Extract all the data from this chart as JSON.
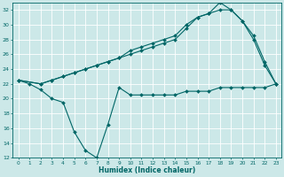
{
  "title": "",
  "xlabel": "Humidex (Indice chaleur)",
  "bg_color": "#cce8e8",
  "grid_color": "#ffffff",
  "line_color": "#006666",
  "ylim": [
    12,
    33
  ],
  "xlim": [
    -0.5,
    23.5
  ],
  "yticks": [
    12,
    14,
    16,
    18,
    20,
    22,
    24,
    26,
    28,
    30,
    32
  ],
  "xticks": [
    0,
    1,
    2,
    3,
    4,
    5,
    6,
    7,
    8,
    9,
    10,
    11,
    12,
    13,
    14,
    15,
    16,
    17,
    18,
    19,
    20,
    21,
    22,
    23
  ],
  "line1_x": [
    0,
    1,
    2,
    3,
    4,
    5,
    6,
    7,
    8,
    9,
    10,
    11,
    12,
    13,
    14,
    15,
    16,
    17,
    18,
    19,
    20,
    21,
    22,
    23
  ],
  "line1_y": [
    22.5,
    22.0,
    21.2,
    20.0,
    19.5,
    15.5,
    13.0,
    12.0,
    16.5,
    21.5,
    20.5,
    20.5,
    20.5,
    20.5,
    20.5,
    21.0,
    21.0,
    21.0,
    21.5,
    21.5,
    21.5,
    21.5,
    21.5,
    22.0
  ],
  "line2_x": [
    0,
    2,
    3,
    4,
    5,
    6,
    7,
    8,
    9,
    10,
    11,
    12,
    13,
    14,
    15,
    16,
    17,
    18,
    19,
    20,
    21,
    22,
    23
  ],
  "line2_y": [
    22.5,
    22.0,
    22.5,
    23.0,
    23.5,
    24.0,
    24.5,
    25.0,
    25.5,
    26.0,
    26.5,
    27.0,
    27.5,
    28.0,
    29.5,
    31.0,
    31.5,
    32.0,
    32.0,
    30.5,
    28.0,
    24.5,
    22.0
  ],
  "line3_x": [
    0,
    2,
    3,
    4,
    5,
    6,
    7,
    8,
    9,
    10,
    11,
    12,
    13,
    14,
    15,
    16,
    17,
    18,
    19,
    20,
    21,
    22,
    23
  ],
  "line3_y": [
    22.5,
    22.0,
    22.5,
    23.0,
    23.5,
    24.0,
    24.5,
    25.0,
    25.5,
    26.5,
    27.0,
    27.5,
    28.0,
    28.5,
    30.0,
    31.0,
    31.5,
    33.0,
    32.0,
    30.5,
    28.5,
    25.0,
    22.0
  ]
}
